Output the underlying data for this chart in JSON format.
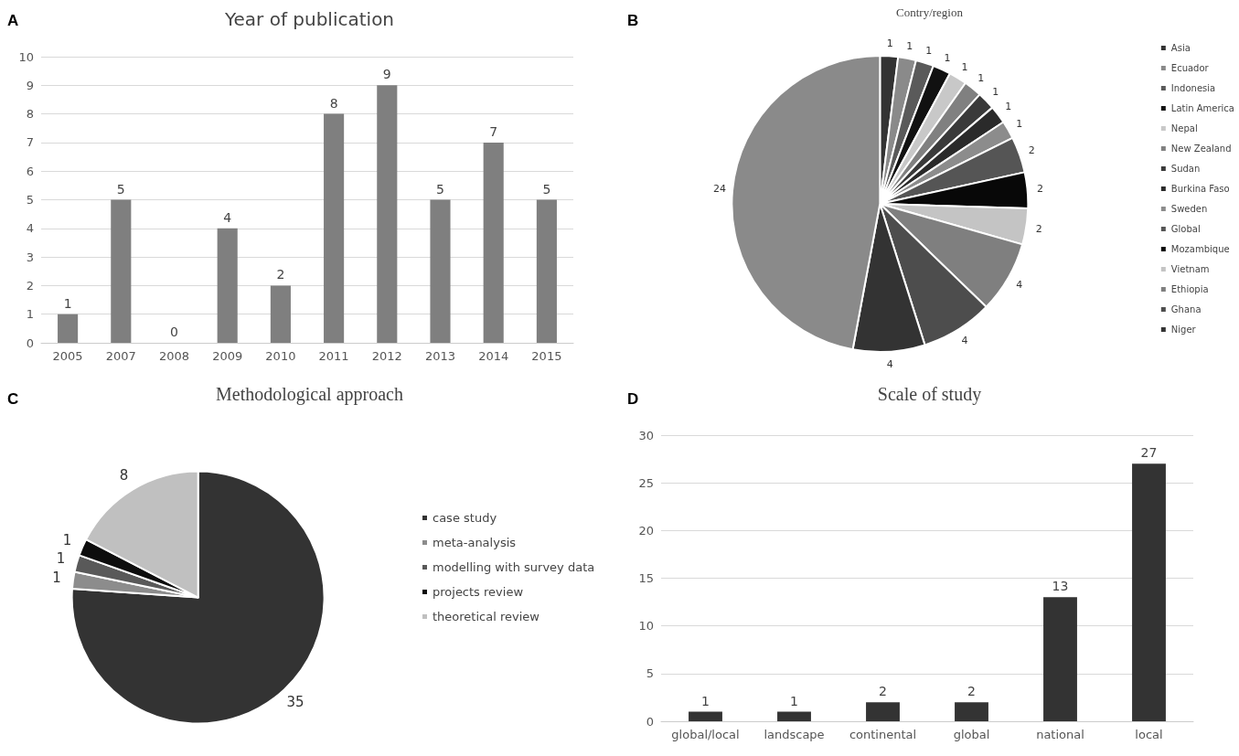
{
  "chart_data": [
    {
      "type": "bar",
      "title": "Year of publication",
      "annotations": [
        "A"
      ],
      "categories": [
        "2005",
        "2007",
        "2008",
        "2009",
        "2010",
        "2011",
        "2012",
        "2013",
        "2014",
        "2015"
      ],
      "values": [
        1,
        5,
        0,
        4,
        2,
        8,
        9,
        5,
        7,
        5
      ],
      "color": "#7f7f7f",
      "ylim": [
        0,
        10
      ],
      "yticks": [
        0,
        1,
        2,
        3,
        4,
        5,
        6,
        7,
        8,
        9,
        10
      ],
      "grid": "y",
      "data_labels": true,
      "legend": false
    },
    {
      "type": "pie",
      "title": "Contry/region",
      "annotations": [
        "B"
      ],
      "categories": [
        "Asia",
        "Ecuador",
        "Indonesia",
        "Latin America",
        "Nepal",
        "New Zealand",
        "Sudan",
        "Burkina Faso",
        "Sweden",
        "Global",
        "Mozambique",
        "Vietnam",
        "Ethiopia",
        "Ghana",
        "Niger",
        null
      ],
      "values": [
        1,
        1,
        1,
        1,
        1,
        1,
        1,
        1,
        1,
        2,
        2,
        2,
        4,
        4,
        4,
        24
      ],
      "colors": [
        "#333333",
        "#8a8a8a",
        "#5a5a5a",
        "#111111",
        "#c8c8c8",
        "#808080",
        "#3a3a3a",
        "#2a2a2a",
        "#8c8c8c",
        "#555555",
        "#080808",
        "#c4c4c4",
        "#7f7f7f",
        "#4d4d4d",
        "#333333",
        "#8a8a8a"
      ],
      "data_labels": true,
      "legend": "right"
    },
    {
      "type": "pie",
      "title": "Methodological approach",
      "annotations": [
        "C"
      ],
      "categories": [
        "case study",
        "meta-analysis",
        "modelling with survey data",
        "projects review",
        "theoretical review"
      ],
      "values": [
        35,
        1,
        1,
        1,
        8
      ],
      "colors": [
        "#333333",
        "#8c8c8c",
        "#595959",
        "#0d0d0d",
        "#c0c0c0"
      ],
      "data_labels": true,
      "legend": "right"
    },
    {
      "type": "bar",
      "title": "Scale of study",
      "annotations": [
        "D"
      ],
      "categories": [
        "global/local",
        "landscape",
        "continental",
        "global",
        "national",
        "local"
      ],
      "values": [
        1,
        1,
        2,
        2,
        13,
        27
      ],
      "color": "#333333",
      "ylim": [
        0,
        30
      ],
      "yticks": [
        0,
        5,
        10,
        15,
        20,
        25,
        30
      ],
      "grid": "y",
      "data_labels": true,
      "legend": false
    }
  ]
}
